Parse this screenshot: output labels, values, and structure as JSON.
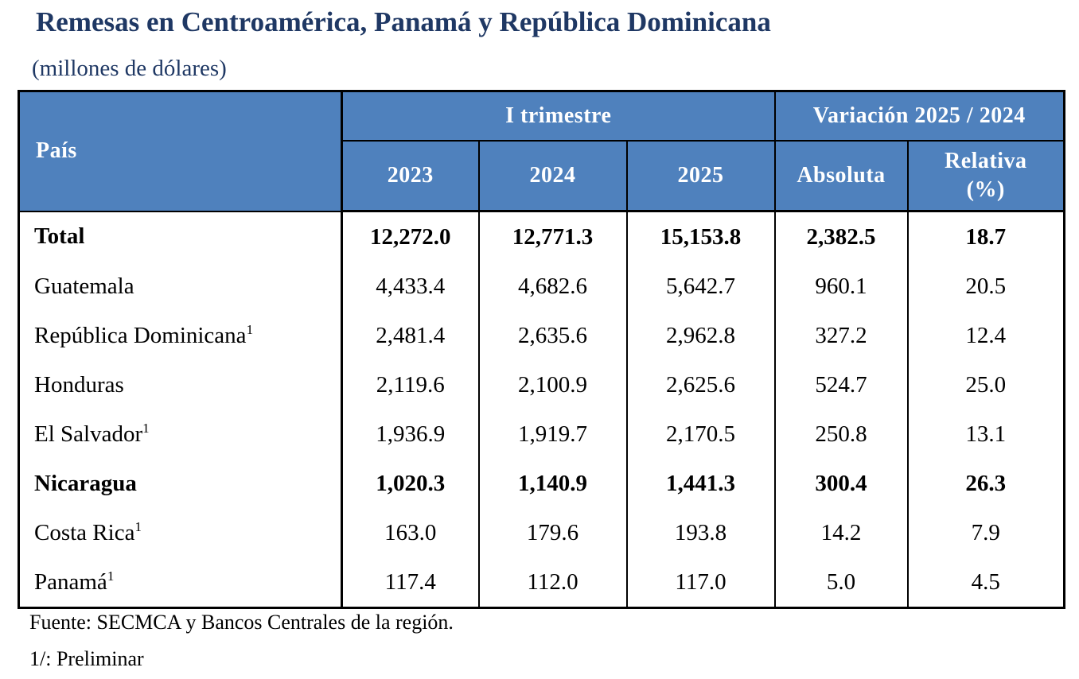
{
  "title": "Remesas en Centroamérica, Panamá y República Dominicana",
  "subtitle": "(millones de dólares)",
  "table": {
    "header": {
      "pais": "País",
      "group_trimestre": "I trimestre",
      "group_variacion": "Variación 2025 / 2024",
      "years": [
        "2023",
        "2024",
        "2025"
      ],
      "absoluta": "Absoluta",
      "relativa_line1": "Relativa",
      "relativa_line2": "(%)"
    },
    "rows": [
      {
        "country": "Total",
        "sup": "",
        "bold": true,
        "v2023": "12,272.0",
        "v2024": "12,771.3",
        "v2025": "15,153.8",
        "abs": "2,382.5",
        "rel": "18.7"
      },
      {
        "country": "Guatemala",
        "sup": "",
        "bold": false,
        "v2023": "4,433.4",
        "v2024": "4,682.6",
        "v2025": "5,642.7",
        "abs": "960.1",
        "rel": "20.5"
      },
      {
        "country": "República Dominicana",
        "sup": "1",
        "bold": false,
        "v2023": "2,481.4",
        "v2024": "2,635.6",
        "v2025": "2,962.8",
        "abs": "327.2",
        "rel": "12.4"
      },
      {
        "country": "Honduras",
        "sup": "",
        "bold": false,
        "v2023": "2,119.6",
        "v2024": "2,100.9",
        "v2025": "2,625.6",
        "abs": "524.7",
        "rel": "25.0"
      },
      {
        "country": "El Salvador",
        "sup": "1",
        "bold": false,
        "v2023": "1,936.9",
        "v2024": "1,919.7",
        "v2025": "2,170.5",
        "abs": "250.8",
        "rel": "13.1"
      },
      {
        "country": "Nicaragua",
        "sup": "",
        "bold": true,
        "v2023": "1,020.3",
        "v2024": "1,140.9",
        "v2025": "1,441.3",
        "abs": "300.4",
        "rel": "26.3"
      },
      {
        "country": "Costa Rica",
        "sup": "1",
        "bold": false,
        "v2023": "163.0",
        "v2024": "179.6",
        "v2025": "193.8",
        "abs": "14.2",
        "rel": "7.9"
      },
      {
        "country": "Panamá",
        "sup": "1",
        "bold": false,
        "v2023": "117.4",
        "v2024": "112.0",
        "v2025": "117.0",
        "abs": "5.0",
        "rel": "4.5"
      }
    ]
  },
  "notes": {
    "source": "Fuente: SECMCA y Bancos Centrales de la región.",
    "preliminary": "1/: Preliminar"
  },
  "colors": {
    "title": "#1f3864",
    "header_bg": "#4f81bd",
    "header_text": "#ffffff"
  }
}
